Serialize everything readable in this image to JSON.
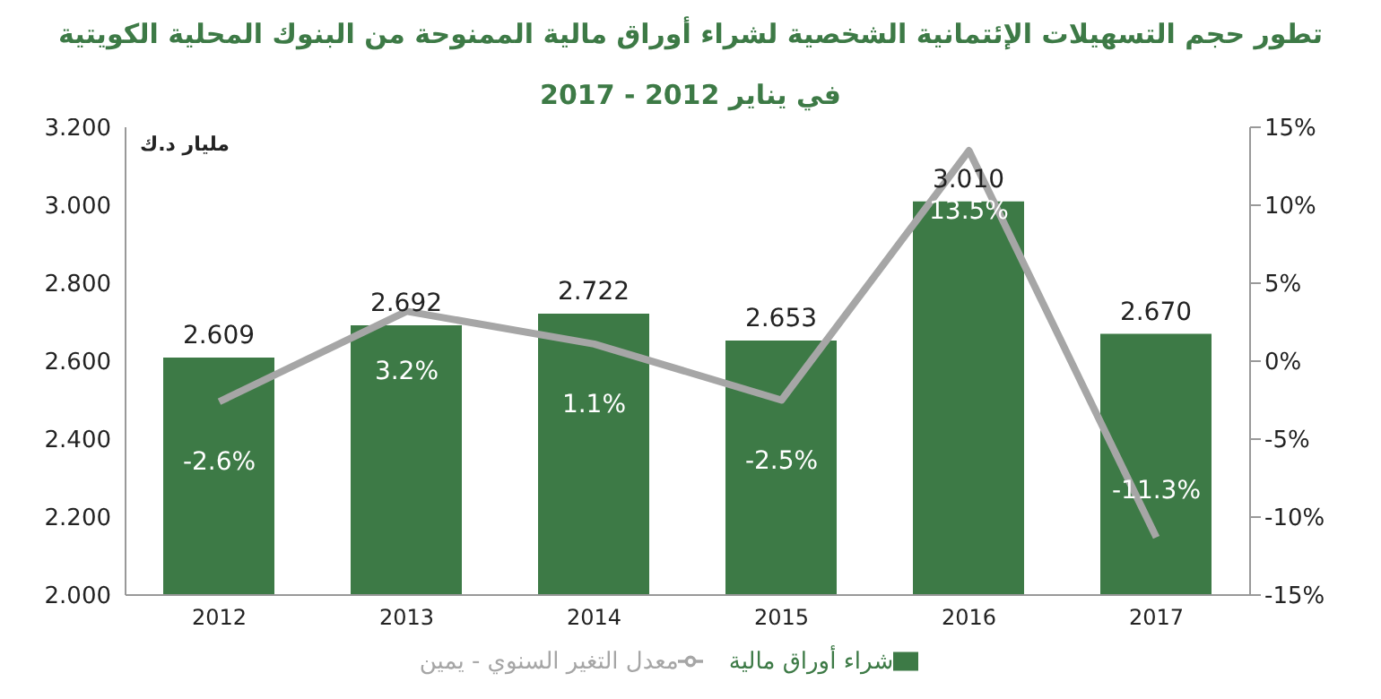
{
  "chart_data": {
    "type": "bar",
    "title": "تطور حجم التسهيلات الإئتمانية الشخصية  لشراء أوراق مالية الممنوحة من البنوك المحلية الكويتية",
    "subtitle": "في يناير 2012  -  2017",
    "ylabel": "مليار د.ك",
    "categories": [
      "2012",
      "2013",
      "2014",
      "2015",
      "2016",
      "2017"
    ],
    "series": [
      {
        "name": "شراء أوراق مالية",
        "color": "#3d7a46",
        "values": [
          2.609,
          2.692,
          2.722,
          2.653,
          3.01,
          2.67
        ],
        "value_labels": [
          "2.609",
          "2.692",
          "2.722",
          "2.653",
          "3.010",
          "2.670"
        ]
      },
      {
        "name": "معدل التغير السنوي - يمين",
        "type": "line",
        "axis": "y2",
        "color": "#a6a6a6",
        "values": [
          -2.6,
          3.2,
          1.1,
          -2.5,
          13.5,
          -11.3
        ],
        "value_labels": [
          "-2.6%",
          "3.2%",
          "1.1%",
          "-2.5%",
          "13.5%",
          "-11.3%"
        ]
      }
    ],
    "ylim": [
      2.0,
      3.2
    ],
    "yticks": [
      {
        "value": 2.0,
        "label": "2.000"
      },
      {
        "value": 2.2,
        "label": "2.200"
      },
      {
        "value": 2.4,
        "label": "2.400"
      },
      {
        "value": 2.6,
        "label": "2.600"
      },
      {
        "value": 2.8,
        "label": "2.800"
      },
      {
        "value": 3.0,
        "label": "3.000"
      },
      {
        "value": 3.2,
        "label": "3.200"
      }
    ],
    "y2lim": [
      -15,
      15
    ],
    "y2ticks": [
      {
        "value": -15,
        "label": "-15%"
      },
      {
        "value": -10,
        "label": "-10%"
      },
      {
        "value": -5,
        "label": "-5%"
      },
      {
        "value": 0,
        "label": "0%"
      },
      {
        "value": 5,
        "label": "5%"
      },
      {
        "value": 10,
        "label": "10%"
      },
      {
        "value": 15,
        "label": "15%"
      }
    ],
    "grid": false,
    "legend": "bottom",
    "marker": "none",
    "line_style": "solid"
  }
}
